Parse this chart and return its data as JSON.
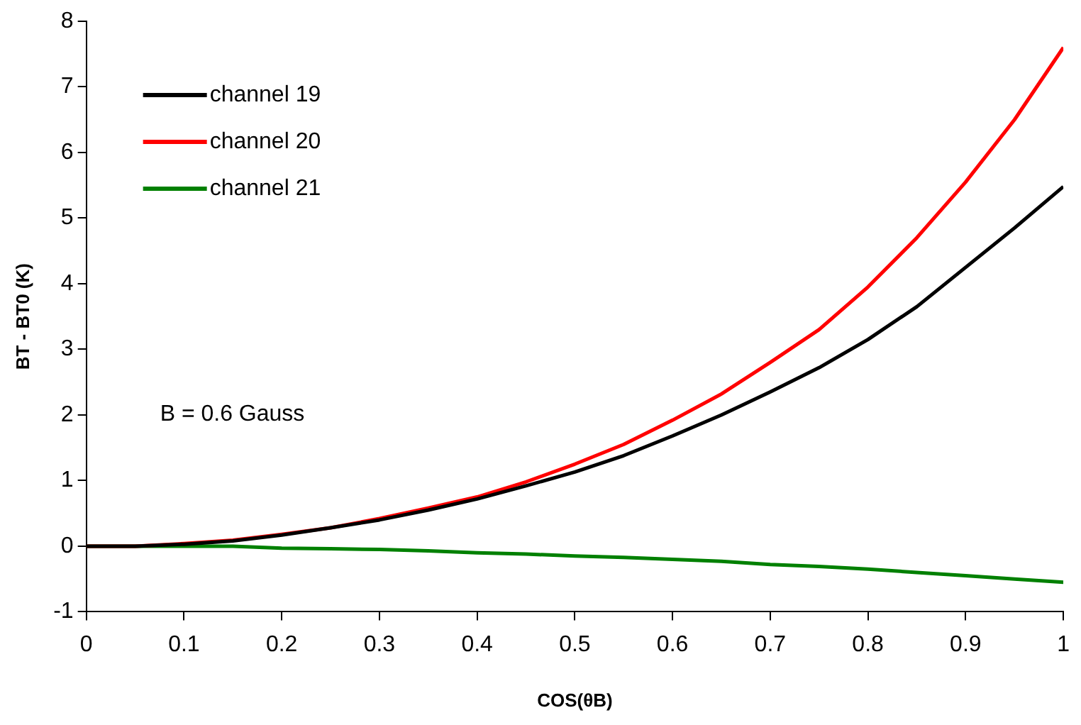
{
  "chart_data": {
    "type": "line",
    "xlabel": "COS(θB)",
    "ylabel": "BT - BT0 (K)",
    "x": [
      0,
      0.05,
      0.1,
      0.15,
      0.2,
      0.25,
      0.3,
      0.35,
      0.4,
      0.45,
      0.5,
      0.55,
      0.6,
      0.65,
      0.7,
      0.75,
      0.8,
      0.85,
      0.9,
      0.95,
      1
    ],
    "series": [
      {
        "name": "channel 19",
        "color": "#000000",
        "values": [
          0,
          0,
          0.03,
          0.08,
          0.17,
          0.28,
          0.4,
          0.55,
          0.72,
          0.92,
          1.13,
          1.38,
          1.68,
          2.0,
          2.35,
          2.72,
          3.15,
          3.65,
          4.25,
          4.85,
          5.48
        ]
      },
      {
        "name": "channel 20",
        "color": "#ff0000",
        "values": [
          0,
          0,
          0.04,
          0.09,
          0.18,
          0.28,
          0.42,
          0.58,
          0.75,
          0.98,
          1.25,
          1.55,
          1.92,
          2.32,
          2.8,
          3.3,
          3.95,
          4.7,
          5.55,
          6.5,
          7.6
        ]
      },
      {
        "name": "channel 21",
        "color": "#008000",
        "values": [
          0,
          0,
          0,
          0,
          -0.03,
          -0.04,
          -0.05,
          -0.07,
          -0.1,
          -0.12,
          -0.15,
          -0.17,
          -0.2,
          -0.23,
          -0.28,
          -0.31,
          -0.35,
          -0.4,
          -0.45,
          -0.5,
          -0.55
        ]
      }
    ],
    "xlim": [
      0,
      1
    ],
    "xticks": [
      0,
      0.1,
      0.2,
      0.3,
      0.4,
      0.5,
      0.6,
      0.7,
      0.8,
      0.9,
      1
    ],
    "ylim": [
      -1,
      8
    ],
    "yticks": [
      -1,
      0,
      1,
      2,
      3,
      4,
      5,
      6,
      7,
      8
    ],
    "grid": false,
    "legend": "top left",
    "marker": "none",
    "line_style": "solid",
    "annotations": [
      "B = 0.6 Gauss"
    ]
  }
}
